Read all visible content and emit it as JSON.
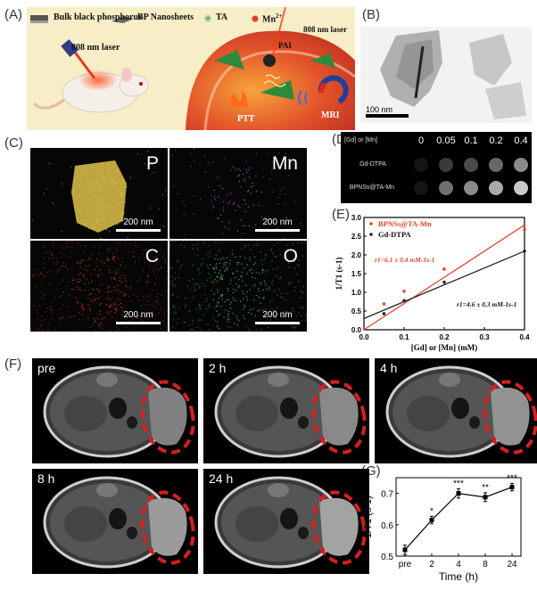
{
  "panels": {
    "A": "(A)",
    "B": "(B)",
    "C": "(C)",
    "D": "(D)",
    "E": "(E)",
    "F": "(F)",
    "G": "(G)"
  },
  "panelA": {
    "legend": [
      "Bulk black phosphorus",
      "BP Nanosheets",
      "TA",
      "Mn"
    ],
    "mn_superscript": "2+",
    "laser_left": "808 nm laser",
    "laser_right": "808 nm laser",
    "pai": "PAI",
    "ptt": "PTT",
    "mri": "MRI"
  },
  "panelB": {
    "scale": "100 nm"
  },
  "panelC": {
    "tiles": [
      {
        "element": "P",
        "scale": "200 nm",
        "color": "#e0c24a"
      },
      {
        "element": "Mn",
        "scale": "200 nm",
        "color": "#b15ad0"
      },
      {
        "element": "C",
        "scale": "200 nm",
        "color": "#d83b22"
      },
      {
        "element": "O",
        "scale": "200 nm",
        "color": "#35c27a"
      }
    ]
  },
  "panelD": {
    "header_label": "[Gd] or [Mn]",
    "concentrations": [
      "0",
      "0.05",
      "0.1",
      "0.2",
      "0.4"
    ],
    "rows": [
      "Gd-DTPA",
      "BPNSs@TA-Mn"
    ]
  },
  "chart_data": [
    {
      "type": "scatter",
      "panel": "E",
      "xlabel": "[Gd] or [Mn] (mM)",
      "ylabel": "1/T1 (s-1)",
      "xlim": [
        0.0,
        0.4
      ],
      "ylim": [
        0.0,
        3.0
      ],
      "xticks": [
        "0.0",
        "0.1",
        "0.2",
        "0.3",
        "0.4"
      ],
      "yticks": [
        "0.0",
        "0.5",
        "1.0",
        "1.5",
        "2.0",
        "2.5",
        "3.0"
      ],
      "legend_position": "top-left",
      "series": [
        {
          "name": "BPNSs@TA-Mn",
          "color": "#e2472b",
          "x": [
            0.05,
            0.1,
            0.2,
            0.4
          ],
          "y": [
            0.69,
            1.03,
            1.62,
            2.68
          ],
          "fit": [
            [
              0,
              0.4
            ],
            [
              0,
              2.8
            ]
          ],
          "annotation": "r1=6.1 ± 0.4 mM-1s-1"
        },
        {
          "name": "Gd-DTPA",
          "color": "#222222",
          "x": [
            0.05,
            0.1,
            0.2,
            0.4
          ],
          "y": [
            0.43,
            0.78,
            1.27,
            2.1
          ],
          "fit": [
            [
              0,
              0.4
            ],
            [
              0.3,
              2.1
            ]
          ],
          "annotation": "r1=4.6 ± 0.3 mM-1s-1"
        }
      ]
    },
    {
      "type": "line",
      "panel": "G",
      "xlabel": "Time (h)",
      "ylabel": "1/T1 (s-1)",
      "categories": [
        "pre",
        "2",
        "4",
        "8",
        "24"
      ],
      "ylim": [
        0.5,
        0.75
      ],
      "yticks": [
        "0.5",
        "0.6",
        "0.7"
      ],
      "series": [
        {
          "values": [
            0.52,
            0.615,
            0.7,
            0.688,
            0.72
          ],
          "errors": [
            0.015,
            0.012,
            0.015,
            0.014,
            0.012
          ],
          "significance": [
            "",
            "*",
            "***",
            "**",
            "***"
          ]
        }
      ]
    }
  ],
  "panelF": {
    "timepoints": [
      "pre",
      "2 h",
      "4 h",
      "8 h",
      "24 h"
    ]
  }
}
